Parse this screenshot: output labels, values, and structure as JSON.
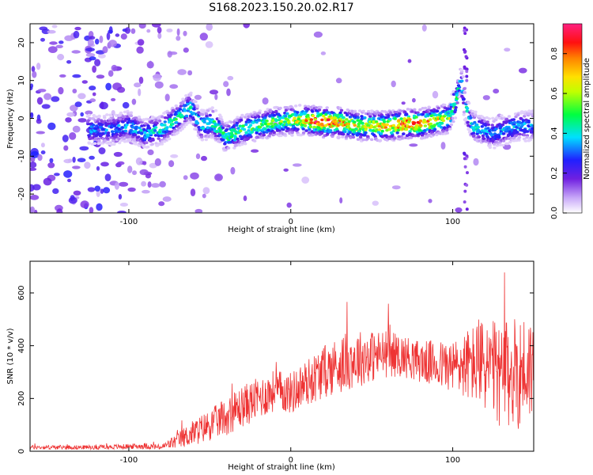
{
  "title": "S168.2023.150.20.02.R17",
  "chart_data": [
    {
      "type": "heatmap",
      "xlabel": "Height of straight line (km)",
      "ylabel": "Frequency (Hz)",
      "xlim": [
        -161,
        150
      ],
      "ylim": [
        -25,
        25
      ],
      "xticks": [
        -100,
        0,
        100
      ],
      "yticks": [
        -20,
        -10,
        0,
        10,
        20
      ],
      "colorbar": {
        "label": "Normalized spectral amplitude",
        "range": [
          0.0,
          0.95
        ],
        "ticks": [
          0.0,
          0.2,
          0.4,
          0.6,
          0.8
        ]
      },
      "ridge": {
        "x": [
          -110,
          -100,
          -90,
          -80,
          -70,
          -62,
          -55,
          -48,
          -40,
          -30,
          -20,
          -10,
          0,
          10,
          20,
          30,
          40,
          50,
          60,
          70,
          80,
          90,
          98,
          102,
          105,
          108,
          112,
          118,
          125,
          132,
          140,
          150
        ],
        "frequency": [
          -3,
          -2,
          -4,
          -3,
          0,
          3,
          -2,
          -1,
          -5,
          -3,
          -2,
          -1,
          -0.5,
          -0.5,
          -1,
          -1,
          -2,
          -2,
          -2,
          -1.5,
          -1.5,
          -0.5,
          0,
          5,
          10,
          3,
          -2,
          -3,
          -4,
          -3,
          -2,
          -2
        ],
        "amplitude": [
          0.35,
          0.4,
          0.4,
          0.45,
          0.5,
          0.45,
          0.45,
          0.5,
          0.5,
          0.55,
          0.55,
          0.6,
          0.6,
          0.8,
          0.95,
          0.8,
          0.7,
          0.7,
          0.75,
          0.9,
          0.85,
          0.7,
          0.65,
          0.5,
          0.4,
          0.45,
          0.45,
          0.4,
          0.35,
          0.4,
          0.4,
          0.35
        ]
      }
    },
    {
      "type": "line",
      "xlabel": "Height of straight line (km)",
      "ylabel": "SNR (10 * v/v)",
      "xlim": [
        -161,
        150
      ],
      "ylim": [
        0,
        720
      ],
      "xticks": [
        -100,
        0,
        100
      ],
      "yticks": [
        0,
        200,
        400,
        600
      ],
      "color": "#ee3333",
      "series": [
        {
          "x": [
            -161,
            -140,
            -120,
            -100,
            -90,
            -80,
            -70,
            -60,
            -50,
            -40,
            -30,
            -20,
            -10,
            0,
            10,
            20,
            30,
            40,
            50,
            60,
            70,
            80,
            90,
            100,
            110,
            120,
            130,
            140,
            150
          ],
          "y": [
            15,
            15,
            15,
            18,
            20,
            15,
            40,
            70,
            100,
            130,
            170,
            200,
            230,
            220,
            260,
            300,
            330,
            350,
            360,
            370,
            360,
            340,
            330,
            320,
            330,
            330,
            280,
            300,
            320
          ],
          "spread": [
            8,
            8,
            8,
            10,
            12,
            10,
            30,
            50,
            60,
            70,
            80,
            80,
            80,
            80,
            90,
            100,
            110,
            110,
            100,
            90,
            80,
            80,
            90,
            100,
            140,
            180,
            200,
            220,
            200
          ]
        }
      ]
    }
  ]
}
